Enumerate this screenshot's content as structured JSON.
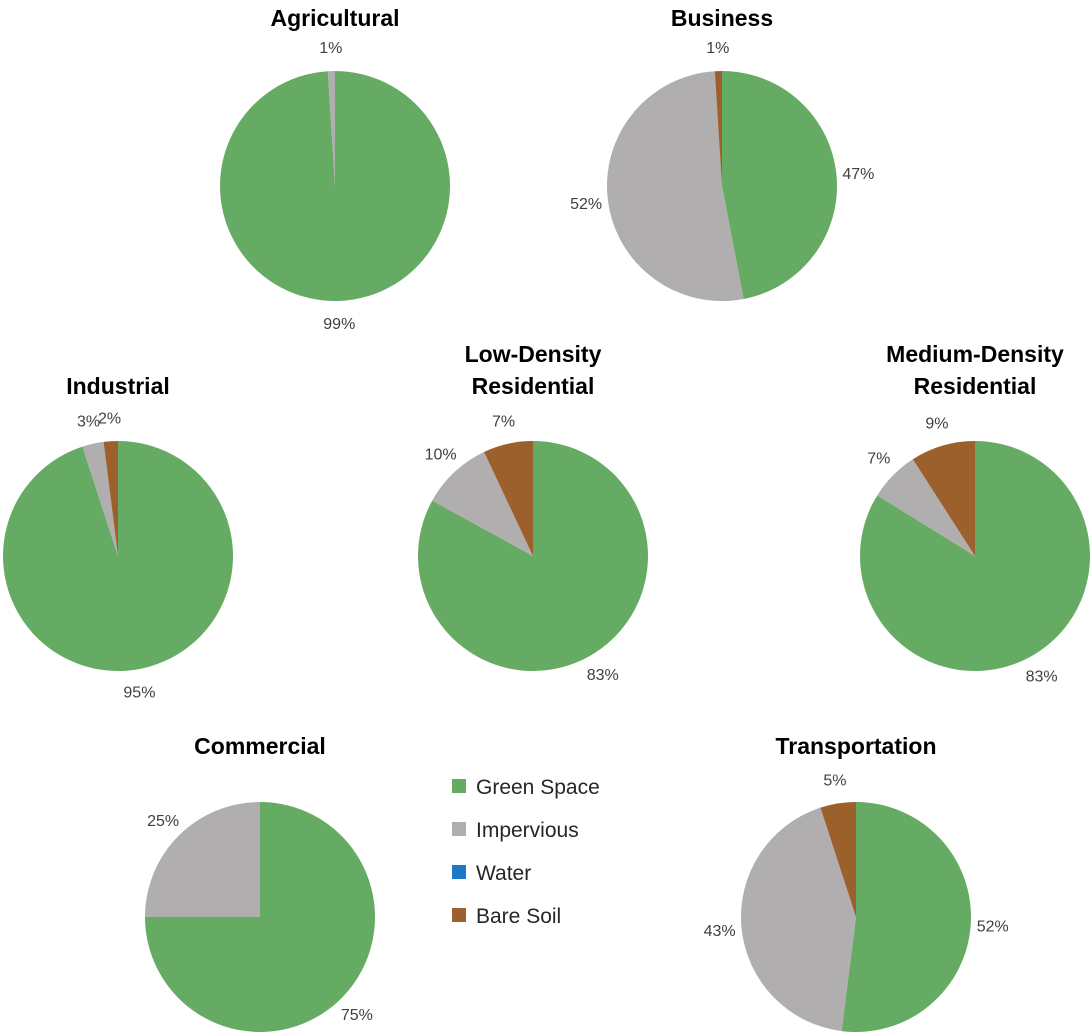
{
  "colors": {
    "Green Space": "#66ab63",
    "Impervious": "#b0aeaf",
    "Water": "#1f77c8",
    "Bare Soil": "#9b602c"
  },
  "legend": {
    "items": [
      "Green Space",
      "Impervious",
      "Water",
      "Bare Soil"
    ]
  },
  "chart_data": [
    {
      "type": "pie",
      "title_lines": [
        "Agricultural"
      ],
      "slices": [
        {
          "category": "Green Space",
          "value": 99,
          "label": "99%"
        },
        {
          "category": "Impervious",
          "value": 1,
          "label": "1%"
        }
      ]
    },
    {
      "type": "pie",
      "title_lines": [
        "Business"
      ],
      "slices": [
        {
          "category": "Green Space",
          "value": 47,
          "label": "47%"
        },
        {
          "category": "Impervious",
          "value": 52,
          "label": "52%"
        },
        {
          "category": "Bare Soil",
          "value": 1,
          "label": "1%"
        }
      ]
    },
    {
      "type": "pie",
      "title_lines": [
        "Industrial"
      ],
      "slices": [
        {
          "category": "Green Space",
          "value": 95,
          "label": "95%"
        },
        {
          "category": "Impervious",
          "value": 3,
          "label": "3%"
        },
        {
          "category": "Bare Soil",
          "value": 2,
          "label": "2%"
        }
      ]
    },
    {
      "type": "pie",
      "title_lines": [
        "Low-Density",
        "Residential"
      ],
      "slices": [
        {
          "category": "Green Space",
          "value": 83,
          "label": "83%"
        },
        {
          "category": "Impervious",
          "value": 10,
          "label": "10%"
        },
        {
          "category": "Bare Soil",
          "value": 7,
          "label": "7%"
        }
      ]
    },
    {
      "type": "pie",
      "title_lines": [
        "Medium-Density",
        "Residential"
      ],
      "slices": [
        {
          "category": "Green Space",
          "value": 83,
          "label": "83%"
        },
        {
          "category": "Impervious",
          "value": 7,
          "label": "7%"
        },
        {
          "category": "Bare Soil",
          "value": 9,
          "label": "9%"
        }
      ]
    },
    {
      "type": "pie",
      "title_lines": [
        "Commercial"
      ],
      "slices": [
        {
          "category": "Green Space",
          "value": 75,
          "label": "75%"
        },
        {
          "category": "Impervious",
          "value": 25,
          "label": "25%"
        }
      ]
    },
    {
      "type": "pie",
      "title_lines": [
        "Transportation"
      ],
      "slices": [
        {
          "category": "Green Space",
          "value": 52,
          "label": "52%"
        },
        {
          "category": "Impervious",
          "value": 43,
          "label": "43%"
        },
        {
          "category": "Bare Soil",
          "value": 5,
          "label": "5%"
        }
      ]
    }
  ]
}
